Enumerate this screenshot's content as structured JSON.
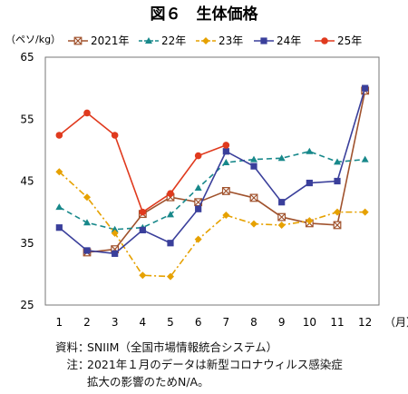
{
  "chart_data": {
    "type": "line",
    "title": "図６　生体価格",
    "ylabel": "（ペソ/kg）",
    "xlabel": "（月）",
    "x": [
      1,
      2,
      3,
      4,
      5,
      6,
      7,
      8,
      9,
      10,
      11,
      12
    ],
    "ylim": [
      25,
      65
    ],
    "yticks": [
      25,
      35,
      45,
      55,
      65
    ],
    "grid": false,
    "legend_position": "top",
    "series": [
      {
        "name": "2021年",
        "color": "#a0522d",
        "marker": "x-square",
        "dash": "solid",
        "values": [
          null,
          33.5,
          34.0,
          39.7,
          42.4,
          41.6,
          43.4,
          42.3,
          39.2,
          38.2,
          37.9,
          59.6
        ]
      },
      {
        "name": "22年",
        "color": "#17888a",
        "marker": "triangle",
        "dash": "dashed",
        "values": [
          40.8,
          38.3,
          37.2,
          37.5,
          39.6,
          43.9,
          48.0,
          48.5,
          48.7,
          49.8,
          48.1,
          48.5
        ]
      },
      {
        "name": "23年",
        "color": "#e6a100",
        "marker": "diamond",
        "dash": "dashdot",
        "values": [
          46.5,
          42.4,
          36.6,
          29.8,
          29.6,
          35.6,
          39.5,
          38.1,
          37.9,
          38.6,
          40.0,
          40.0
        ]
      },
      {
        "name": "24年",
        "color": "#3a3f9b",
        "marker": "square",
        "dash": "solid",
        "values": [
          37.5,
          33.8,
          33.3,
          37.1,
          35.0,
          40.5,
          49.8,
          47.4,
          41.6,
          44.7,
          45.0,
          60.0
        ]
      },
      {
        "name": "25年",
        "color": "#e03a1e",
        "marker": "circle",
        "dash": "solid",
        "values": [
          52.4,
          56.0,
          52.4,
          40.0,
          43.0,
          49.1,
          50.8,
          null,
          null,
          null,
          null,
          null
        ]
      }
    ]
  },
  "notes": {
    "source_label": "資料",
    "source_text": "SNIIM（全国市場情報統合システム）",
    "note_label": "注",
    "note_line1": "2021年１月のデータは新型コロナウィルス感染症",
    "note_line2": "拡大の影響のためN/A。"
  }
}
